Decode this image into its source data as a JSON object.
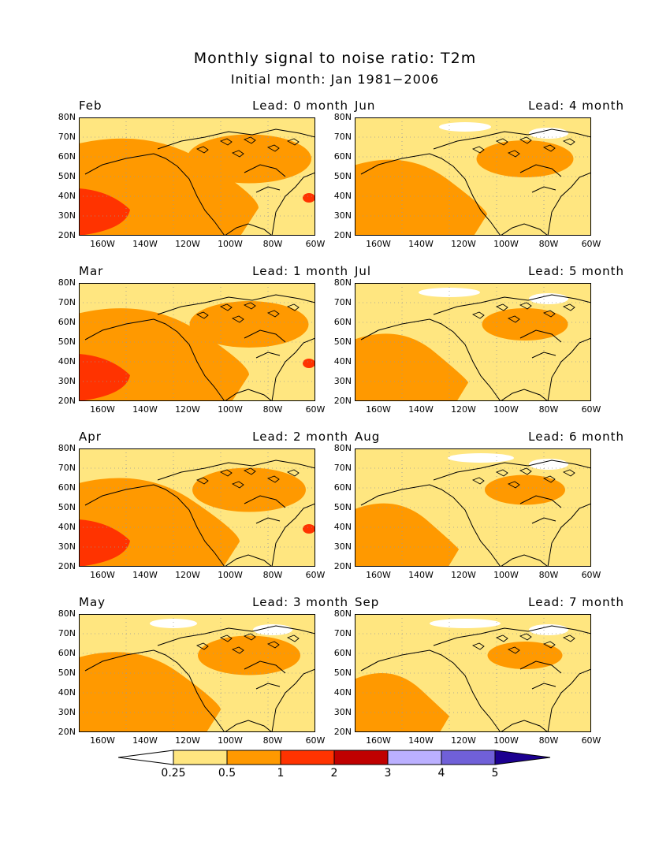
{
  "title": "Monthly signal to noise ratio: T2m",
  "subtitle": "Initial month: Jan 1981−2006",
  "lat_labels": [
    "80N",
    "70N",
    "60N",
    "50N",
    "40N",
    "30N",
    "20N"
  ],
  "lon_labels": [
    "160W",
    "140W",
    "120W",
    "100W",
    "80W",
    "60W"
  ],
  "panels": [
    {
      "month": "Feb",
      "lead": "Lead: 0 month",
      "level": 0.7
    },
    {
      "month": "Jun",
      "lead": "Lead: 4 month",
      "level": 0.45
    },
    {
      "month": "Mar",
      "lead": "Lead: 1 month",
      "level": 0.65
    },
    {
      "month": "Jul",
      "lead": "Lead: 5 month",
      "level": 0.35
    },
    {
      "month": "Apr",
      "lead": "Lead: 2 month",
      "level": 0.6
    },
    {
      "month": "Aug",
      "lead": "Lead: 6 month",
      "level": 0.3
    },
    {
      "month": "May",
      "lead": "Lead: 3 month",
      "level": 0.5
    },
    {
      "month": "Sep",
      "lead": "Lead: 7 month",
      "level": 0.25
    }
  ],
  "colorbar": {
    "labels": [
      "0.25",
      "0.5",
      "1",
      "2",
      "3",
      "4",
      "5"
    ],
    "colors": [
      "#ffffff",
      "#ffe680",
      "#ff9900",
      "#ff3300",
      "#c00000",
      "#bbb0ff",
      "#7060d8",
      "#1c0090"
    ]
  },
  "map_colors": {
    "low": "#ffe680",
    "mid": "#ff9900",
    "high": "#ff3300",
    "none": "#ffffff"
  }
}
